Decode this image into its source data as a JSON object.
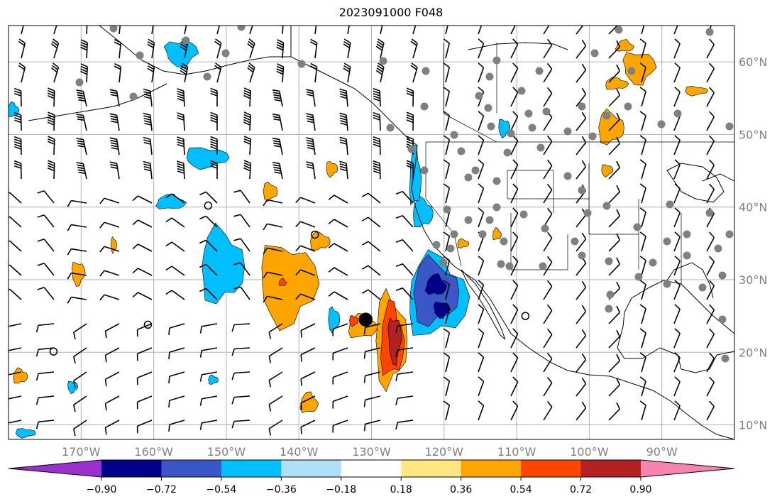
{
  "title": "2023091000 F048",
  "map": {
    "lon_range": [
      -180,
      -80
    ],
    "lat_range": [
      8,
      65
    ],
    "lon_ticks": [
      -170,
      -160,
      -150,
      -140,
      -130,
      -120,
      -110,
      -100,
      -90
    ],
    "lon_tick_labels": [
      "170°W",
      "160°W",
      "150°W",
      "140°W",
      "130°W",
      "120°W",
      "110°W",
      "100°W",
      "90°W"
    ],
    "lat_ticks": [
      10,
      20,
      30,
      40,
      50,
      60
    ],
    "lat_tick_labels": [
      "10°N",
      "20°N",
      "30°N",
      "40°N",
      "50°N",
      "60°N"
    ],
    "grid": true,
    "tick_label_color": "#808080"
  },
  "colorbar": {
    "boundaries": [
      -0.9,
      -0.72,
      -0.54,
      -0.36,
      -0.18,
      0.18,
      0.36,
      0.54,
      0.72,
      0.9
    ],
    "tick_labels": [
      "−0.90",
      "−0.72",
      "−0.54",
      "−0.36",
      "−0.18",
      "0.18",
      "0.36",
      "0.54",
      "0.72",
      "0.90"
    ],
    "under_color": "#9932cc",
    "over_color": "#f784b0",
    "colors": [
      "#00008b",
      "#3a57c7",
      "#00bfff",
      "#b0e0f8",
      "#ffffff",
      "#ffe680",
      "#ffa500",
      "#ff4500",
      "#b22222"
    ]
  },
  "stations_color": "#808080",
  "markers": [
    {
      "lon": -130.8,
      "lat": 24.5,
      "kind": "filled-circle"
    },
    {
      "lon": -160.8,
      "lat": 23.8,
      "kind": "open-circle"
    },
    {
      "lon": -137.8,
      "lat": 36.2,
      "kind": "open-circle"
    },
    {
      "lon": -152.5,
      "lat": 40.2,
      "kind": "open-circle"
    },
    {
      "lon": -173.8,
      "lat": 20.1,
      "kind": "open-circle"
    },
    {
      "lon": -108.8,
      "lat": 25.0,
      "kind": "open-circle"
    }
  ]
}
